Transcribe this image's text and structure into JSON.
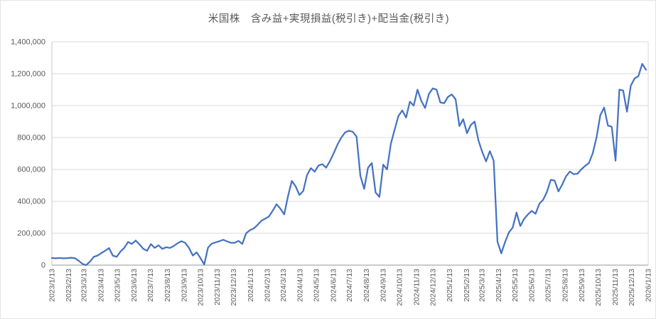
{
  "chart_data": {
    "type": "line",
    "title": "米国株　含み益+実現損益(税引き)+配当金(税引き)",
    "legend": "none",
    "grid": "horizontal",
    "ylim": [
      0,
      1400000
    ],
    "y_tick_step": 200000,
    "y_tick_labels": [
      "0",
      "200,000",
      "400,000",
      "600,000",
      "800,000",
      "1,000,000",
      "1,200,000",
      "1,400,000"
    ],
    "x_axis": {
      "start_date": "2023/1/13",
      "end_date": "2026/1/13",
      "point_interval_days": 7,
      "tick_labels": [
        "2023/1/13",
        "2023/2/13",
        "2023/3/13",
        "2023/4/13",
        "2023/5/13",
        "2023/6/13",
        "2023/7/13",
        "2023/8/13",
        "2023/9/13",
        "2023/10/13",
        "2023/11/13",
        "2023/12/13",
        "2024/1/13",
        "2024/2/13",
        "2024/3/13",
        "2024/4/13",
        "2024/5/13",
        "2024/6/13",
        "2024/7/13",
        "2024/8/13",
        "2024/9/13",
        "2024/10/13",
        "2024/11/13",
        "2024/12/13",
        "2025/1/13",
        "2025/2/13",
        "2025/3/13",
        "2025/4/13",
        "2025/5/13",
        "2025/6/13",
        "2025/7/13",
        "2025/8/13",
        "2025/9/13",
        "2025/10/13",
        "2025/11/13",
        "2025/12/13",
        "2026/1/13"
      ]
    },
    "series": [
      {
        "name": "含み益+実現損益+配当金",
        "color": "#4472C4",
        "values": [
          45000,
          43000,
          45000,
          43000,
          44000,
          46000,
          44000,
          28000,
          8000,
          0,
          22000,
          52000,
          60000,
          76000,
          90000,
          107000,
          60000,
          52000,
          85000,
          108000,
          145000,
          133000,
          154000,
          130000,
          102000,
          90000,
          132000,
          108000,
          124000,
          102000,
          112000,
          108000,
          120000,
          137000,
          150000,
          140000,
          108000,
          60000,
          80000,
          45000,
          4000,
          110000,
          135000,
          143000,
          150000,
          159000,
          149000,
          140000,
          140000,
          152000,
          133000,
          200000,
          219000,
          230000,
          252000,
          278000,
          291000,
          305000,
          342000,
          382000,
          354000,
          318000,
          432000,
          528000,
          494000,
          440000,
          465000,
          565000,
          608000,
          586000,
          624000,
          633000,
          611000,
          652000,
          702000,
          756000,
          800000,
          832000,
          843000,
          836000,
          806000,
          560000,
          478000,
          610000,
          640000,
          455000,
          428000,
          630000,
          600000,
          760000,
          850000,
          935000,
          970000,
          925000,
          1025000,
          1000000,
          1100000,
          1030000,
          985000,
          1073000,
          1108000,
          1100000,
          1020000,
          1015000,
          1055000,
          1070000,
          1040000,
          872000,
          915000,
          827000,
          879000,
          900000,
          782000,
          710000,
          650000,
          715000,
          655000,
          147000,
          74000,
          145000,
          205000,
          236000,
          330000,
          245000,
          290000,
          318000,
          340000,
          322000,
          385000,
          410000,
          460000,
          535000,
          530000,
          462000,
          505000,
          557000,
          587000,
          570000,
          573000,
          600000,
          622000,
          640000,
          700000,
          800000,
          940000,
          988000,
          875000,
          868000,
          655000,
          1100000,
          1095000,
          962000,
          1125000,
          1170000,
          1185000,
          1262000,
          1225000
        ]
      }
    ]
  },
  "style": {
    "line_color": "#4472C4",
    "grid_color": "#D9D9D9",
    "left_axis_color": "#C9C9C9",
    "bottom_axis_color": "#969696",
    "right_border_color": "#D9D9D9",
    "text_color": "#595959",
    "background": "#FFFFFF"
  }
}
